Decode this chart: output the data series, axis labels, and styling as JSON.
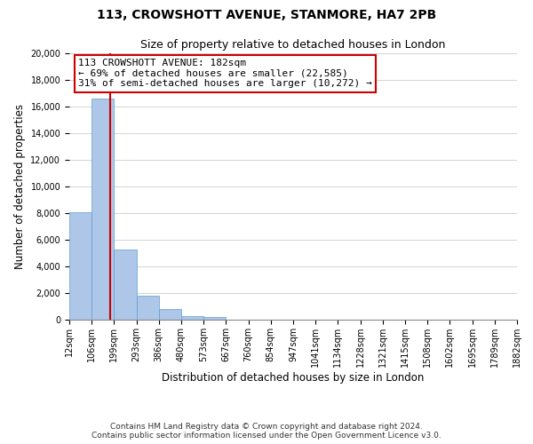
{
  "title": "113, CROWSHOTT AVENUE, STANMORE, HA7 2PB",
  "subtitle": "Size of property relative to detached houses in London",
  "xlabel": "Distribution of detached houses by size in London",
  "ylabel": "Number of detached properties",
  "bin_labels": [
    "12sqm",
    "106sqm",
    "199sqm",
    "293sqm",
    "386sqm",
    "480sqm",
    "573sqm",
    "667sqm",
    "760sqm",
    "854sqm",
    "947sqm",
    "1041sqm",
    "1134sqm",
    "1228sqm",
    "1321sqm",
    "1415sqm",
    "1508sqm",
    "1602sqm",
    "1695sqm",
    "1789sqm",
    "1882sqm"
  ],
  "bar_values": [
    8100,
    16600,
    5300,
    1800,
    800,
    300,
    200,
    0,
    0,
    0,
    0,
    0,
    0,
    0,
    0,
    0,
    0,
    0,
    0,
    0
  ],
  "bar_color": "#aec6e8",
  "bar_edge_color": "#5a9fd4",
  "property_value": 182,
  "property_label": "113 CROWSHOTT AVENUE: 182sqm",
  "annotation_line1": "← 69% of detached houses are smaller (22,585)",
  "annotation_line2": "31% of semi-detached houses are larger (10,272) →",
  "vline_color": "#cc0000",
  "annotation_box_edge_color": "#cc0000",
  "bin_edge_values": [
    12,
    106,
    199,
    293,
    386,
    480,
    573,
    667,
    760,
    854,
    947,
    1041,
    1134,
    1228,
    1321,
    1415,
    1508,
    1602,
    1695,
    1789,
    1882
  ],
  "ylim": [
    0,
    20000
  ],
  "yticks": [
    0,
    2000,
    4000,
    6000,
    8000,
    10000,
    12000,
    14000,
    16000,
    18000,
    20000
  ],
  "footnote1": "Contains HM Land Registry data © Crown copyright and database right 2024.",
  "footnote2": "Contains public sector information licensed under the Open Government Licence v3.0.",
  "background_color": "#ffffff",
  "grid_color": "#cccccc",
  "title_fontsize": 10,
  "subtitle_fontsize": 9,
  "axis_label_fontsize": 8.5,
  "tick_fontsize": 7,
  "annotation_fontsize": 8,
  "footnote_fontsize": 6.5
}
